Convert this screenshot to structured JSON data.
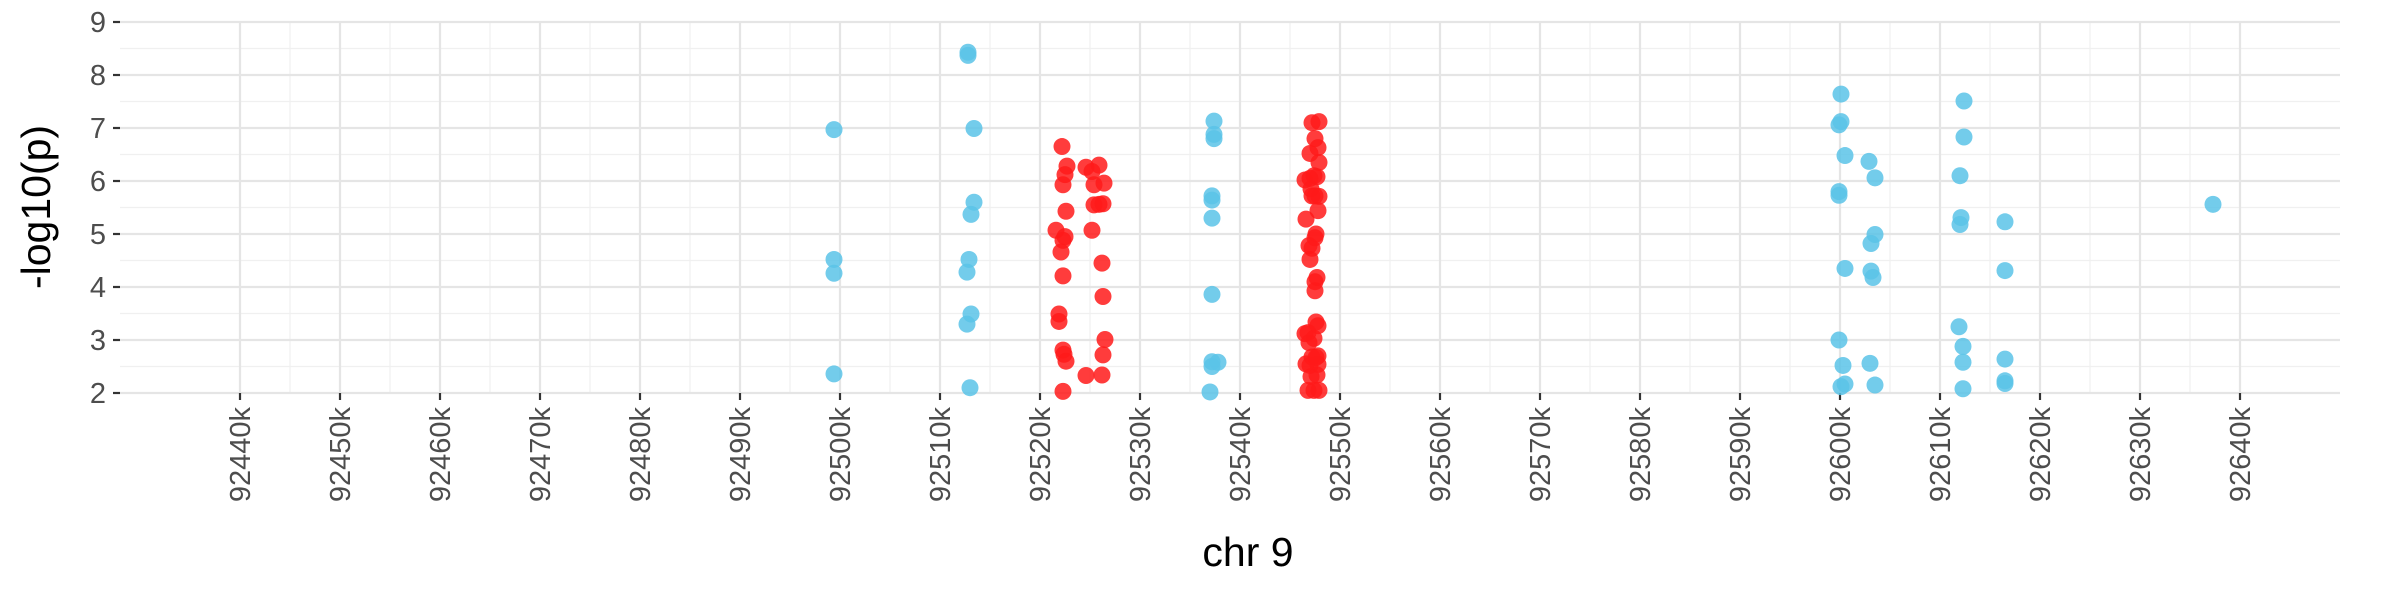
{
  "chart_data": {
    "type": "scatter",
    "title": "",
    "xlabel": "chr 9",
    "ylabel": "-log10(p)",
    "xlim": [
      92428,
      92650
    ],
    "ylim": [
      2,
      9
    ],
    "x_ticks": [
      92440,
      92450,
      92460,
      92470,
      92480,
      92490,
      92500,
      92510,
      92520,
      92530,
      92540,
      92550,
      92560,
      92570,
      92580,
      92590,
      92600,
      92610,
      92620,
      92630,
      92640
    ],
    "x_tick_labels": [
      "92440k",
      "92450k",
      "92460k",
      "92470k",
      "92480k",
      "92490k",
      "92500k",
      "92510k",
      "92520k",
      "92530k",
      "92540k",
      "92550k",
      "92560k",
      "92570k",
      "92580k",
      "92590k",
      "92600k",
      "92610k",
      "92620k",
      "92630k",
      "92640k"
    ],
    "y_ticks": [
      2,
      3,
      4,
      5,
      6,
      7,
      8,
      9
    ],
    "y_tick_labels": [
      "2",
      "3",
      "4",
      "5",
      "6",
      "7",
      "8",
      "9"
    ],
    "grid": true,
    "legend": "none",
    "series": [
      {
        "color": "#5bc3e8",
        "points": [
          [
            92499.4,
            6.97
          ],
          [
            92499.4,
            4.52
          ],
          [
            92499.4,
            4.26
          ],
          [
            92499.4,
            2.36
          ],
          [
            92512.8,
            8.43
          ],
          [
            92512.8,
            8.37
          ],
          [
            92513.4,
            6.99
          ],
          [
            92513.4,
            5.6
          ],
          [
            92513.1,
            5.37
          ],
          [
            92512.9,
            4.52
          ],
          [
            92512.7,
            4.28
          ],
          [
            92513.1,
            3.49
          ],
          [
            92512.7,
            3.3
          ],
          [
            92513.0,
            2.1
          ],
          [
            92537.4,
            7.13
          ],
          [
            92537.4,
            6.88
          ],
          [
            92537.4,
            6.8
          ],
          [
            92537.2,
            5.72
          ],
          [
            92537.2,
            5.64
          ],
          [
            92537.2,
            5.3
          ],
          [
            92537.2,
            3.86
          ],
          [
            92537.2,
            2.59
          ],
          [
            92537.8,
            2.58
          ],
          [
            92537.2,
            2.5
          ],
          [
            92537.0,
            2.02
          ],
          [
            92600.1,
            7.64
          ],
          [
            92600.1,
            7.12
          ],
          [
            92599.9,
            7.06
          ],
          [
            92600.5,
            6.48
          ],
          [
            92599.9,
            5.8
          ],
          [
            92599.9,
            5.73
          ],
          [
            92600.5,
            4.35
          ],
          [
            92599.9,
            3.0
          ],
          [
            92600.3,
            2.52
          ],
          [
            92600.5,
            2.17
          ],
          [
            92600.1,
            2.12
          ],
          [
            92602.9,
            6.37
          ],
          [
            92603.5,
            6.06
          ],
          [
            92603.5,
            4.99
          ],
          [
            92603.1,
            4.82
          ],
          [
            92603.1,
            4.3
          ],
          [
            92603.3,
            4.18
          ],
          [
            92603.0,
            2.56
          ],
          [
            92603.5,
            2.15
          ],
          [
            92612.4,
            7.51
          ],
          [
            92612.4,
            6.83
          ],
          [
            92612.0,
            6.1
          ],
          [
            92612.1,
            5.31
          ],
          [
            92612.0,
            5.18
          ],
          [
            92611.9,
            3.25
          ],
          [
            92612.3,
            2.88
          ],
          [
            92612.3,
            2.58
          ],
          [
            92612.3,
            2.08
          ],
          [
            92616.5,
            5.23
          ],
          [
            92616.5,
            4.31
          ],
          [
            92616.5,
            2.64
          ],
          [
            92616.5,
            2.23
          ],
          [
            92616.5,
            2.18
          ],
          [
            92637.3,
            5.56
          ]
        ]
      },
      {
        "color": "#ff1a1a",
        "points": [
          [
            92522.2,
            6.65
          ],
          [
            92522.5,
            6.12
          ],
          [
            92522.7,
            6.28
          ],
          [
            92522.3,
            5.93
          ],
          [
            92522.6,
            5.43
          ],
          [
            92521.6,
            5.07
          ],
          [
            92522.3,
            4.88
          ],
          [
            92522.5,
            4.95
          ],
          [
            92522.1,
            4.66
          ],
          [
            92522.3,
            4.21
          ],
          [
            92521.9,
            3.49
          ],
          [
            92521.9,
            3.35
          ],
          [
            92522.3,
            2.81
          ],
          [
            92522.4,
            2.73
          ],
          [
            92522.6,
            2.6
          ],
          [
            92522.3,
            2.03
          ],
          [
            92524.6,
            6.26
          ],
          [
            92525.2,
            6.18
          ],
          [
            92525.4,
            5.93
          ],
          [
            92525.4,
            5.55
          ],
          [
            92525.2,
            5.07
          ],
          [
            92524.6,
            2.33
          ],
          [
            92525.9,
            6.3
          ],
          [
            92526.4,
            5.96
          ],
          [
            92526.3,
            5.57
          ],
          [
            92525.9,
            5.56
          ],
          [
            92526.2,
            4.45
          ],
          [
            92526.3,
            3.82
          ],
          [
            92526.5,
            3.01
          ],
          [
            92526.3,
            2.72
          ],
          [
            92526.2,
            2.34
          ],
          [
            92546.5,
            6.02
          ],
          [
            92546.6,
            5.28
          ],
          [
            92546.5,
            3.12
          ],
          [
            92546.6,
            2.55
          ],
          [
            92546.8,
            2.05
          ],
          [
            92547.2,
            7.1
          ],
          [
            92547.0,
            6.52
          ],
          [
            92547.0,
            6.05
          ],
          [
            92547.4,
            6.1
          ],
          [
            92547.1,
            5.85
          ],
          [
            92547.2,
            5.72
          ],
          [
            92546.9,
            4.78
          ],
          [
            92547.2,
            4.73
          ],
          [
            92547.0,
            4.52
          ],
          [
            92546.8,
            3.14
          ],
          [
            92546.9,
            2.95
          ],
          [
            92547.2,
            2.68
          ],
          [
            92547.0,
            2.52
          ],
          [
            92547.1,
            2.31
          ],
          [
            92547.4,
            2.05
          ],
          [
            92547.9,
            7.12
          ],
          [
            92547.5,
            6.8
          ],
          [
            92547.8,
            6.63
          ],
          [
            92547.9,
            6.35
          ],
          [
            92547.7,
            6.08
          ],
          [
            92547.9,
            5.71
          ],
          [
            92547.5,
            5.72
          ],
          [
            92547.8,
            5.44
          ],
          [
            92547.6,
            5.0
          ],
          [
            92547.5,
            4.93
          ],
          [
            92547.5,
            4.1
          ],
          [
            92547.7,
            4.18
          ],
          [
            92547.5,
            3.93
          ],
          [
            92547.6,
            3.34
          ],
          [
            92547.8,
            3.27
          ],
          [
            92547.4,
            3.03
          ],
          [
            92547.8,
            2.7
          ],
          [
            92547.6,
            2.67
          ],
          [
            92547.8,
            2.54
          ],
          [
            92547.7,
            2.34
          ],
          [
            92547.9,
            2.05
          ]
        ]
      }
    ]
  }
}
